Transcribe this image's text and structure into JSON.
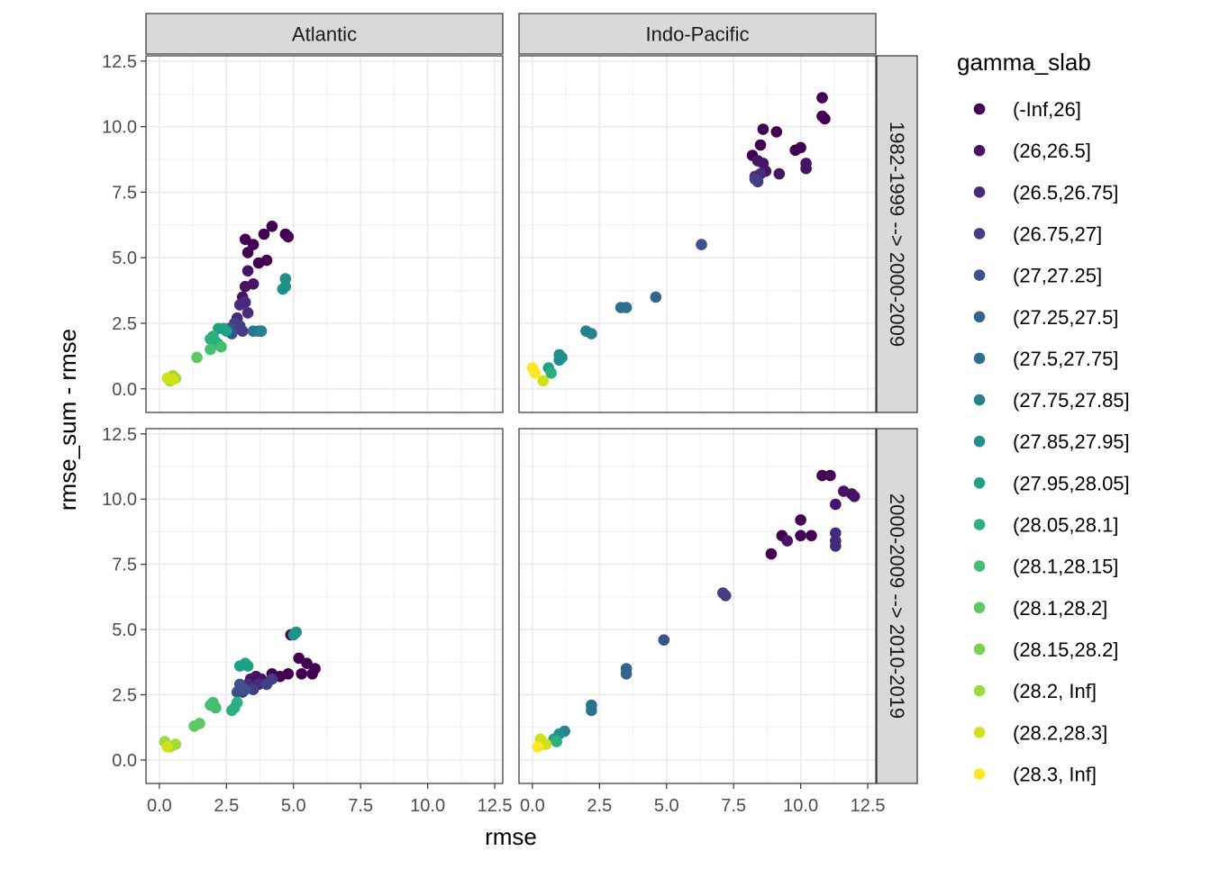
{
  "chart_data": {
    "type": "scatter",
    "facet_cols": [
      "Atlantic",
      "Indo-Pacific"
    ],
    "facet_rows": [
      "1982-1999 --> 2000-2009",
      "2000-2009 --> 2010-2019"
    ],
    "xlabel": "rmse",
    "ylabel": "rmse_sum - rmse",
    "xlim": [
      -0.5,
      12.8
    ],
    "ylim": [
      -0.9,
      12.7
    ],
    "x_ticks": [
      "0.0",
      "2.5",
      "5.0",
      "7.5",
      "10.0",
      "12.5"
    ],
    "y_ticks": [
      "0.0",
      "2.5",
      "5.0",
      "7.5",
      "10.0",
      "12.5"
    ],
    "grid": true,
    "legend_position": "right",
    "legend_title": "gamma_slab",
    "legend": [
      {
        "label": "(-Inf,26]",
        "color": "#440154"
      },
      {
        "label": "(26,26.5]",
        "color": "#471366"
      },
      {
        "label": "(26.5,26.75]",
        "color": "#472A7A"
      },
      {
        "label": "(26.75,27]",
        "color": "#433E85"
      },
      {
        "label": "(27,27.25]",
        "color": "#3B528B"
      },
      {
        "label": "(27.25,27.5]",
        "color": "#32648E"
      },
      {
        "label": "(27.5,27.75]",
        "color": "#2C728E"
      },
      {
        "label": "(27.75,27.85]",
        "color": "#27818E"
      },
      {
        "label": "(27.85,27.95]",
        "color": "#21908C"
      },
      {
        "label": "(27.95,28.05]",
        "color": "#1FA187"
      },
      {
        "label": "(28.05,28.1]",
        "color": "#2BB07F"
      },
      {
        "label": "(28.1,28.15]",
        "color": "#43BF71"
      },
      {
        "label": "(28.1,28.2]",
        "color": "#5DC863"
      },
      {
        "label": "(28.15,28.2]",
        "color": "#7AD151"
      },
      {
        "label": "(28.2, Inf]",
        "color": "#A0DA39"
      },
      {
        "label": "(28.2,28.3]",
        "color": "#D0E11C"
      },
      {
        "label": "(28.3, Inf]",
        "color": "#FDE725"
      }
    ],
    "panels": [
      {
        "col": "Atlantic",
        "row": "1982-1999 --> 2000-2009",
        "points": [
          [
            3.2,
            5.7,
            0
          ],
          [
            3.5,
            5.5,
            0
          ],
          [
            3.3,
            5.2,
            0
          ],
          [
            3.9,
            5.9,
            0
          ],
          [
            4.2,
            6.2,
            0
          ],
          [
            4.7,
            5.9,
            0
          ],
          [
            4.8,
            5.8,
            0
          ],
          [
            3.7,
            4.8,
            0
          ],
          [
            4.0,
            4.9,
            0
          ],
          [
            3.3,
            4.5,
            1
          ],
          [
            3.5,
            4.0,
            1
          ],
          [
            3.2,
            3.9,
            1
          ],
          [
            3.1,
            3.5,
            1
          ],
          [
            3.0,
            3.2,
            2
          ],
          [
            3.2,
            3.3,
            2
          ],
          [
            3.3,
            2.9,
            2
          ],
          [
            2.9,
            2.7,
            2
          ],
          [
            2.8,
            2.5,
            3
          ],
          [
            3.0,
            2.4,
            3
          ],
          [
            2.7,
            2.2,
            3
          ],
          [
            3.1,
            2.2,
            3
          ],
          [
            2.6,
            2.3,
            4
          ],
          [
            2.7,
            2.1,
            4
          ],
          [
            3.5,
            2.2,
            6
          ],
          [
            3.7,
            2.2,
            6
          ],
          [
            3.8,
            2.2,
            7
          ],
          [
            4.7,
            4.2,
            8
          ],
          [
            4.7,
            3.9,
            8
          ],
          [
            4.6,
            3.8,
            8
          ],
          [
            2.4,
            2.3,
            9
          ],
          [
            2.2,
            2.3,
            9
          ],
          [
            2.5,
            2.2,
            9
          ],
          [
            2.0,
            2.0,
            10
          ],
          [
            1.9,
            1.9,
            10
          ],
          [
            2.1,
            1.8,
            10
          ],
          [
            2.2,
            1.7,
            10
          ],
          [
            1.9,
            1.5,
            11
          ],
          [
            2.3,
            1.6,
            11
          ],
          [
            1.4,
            1.2,
            12
          ],
          [
            0.5,
            0.5,
            14
          ],
          [
            0.6,
            0.4,
            14
          ],
          [
            0.4,
            0.3,
            14
          ],
          [
            0.5,
            0.35,
            15
          ],
          [
            0.3,
            0.4,
            15
          ]
        ]
      },
      {
        "col": "Indo-Pacific",
        "row": "1982-1999 --> 2000-2009",
        "points": [
          [
            10.8,
            11.1,
            0
          ],
          [
            10.8,
            10.4,
            0
          ],
          [
            10.9,
            10.3,
            0
          ],
          [
            8.6,
            9.9,
            0
          ],
          [
            9.1,
            9.8,
            0
          ],
          [
            8.5,
            9.3,
            0
          ],
          [
            8.2,
            8.9,
            0
          ],
          [
            10.0,
            9.2,
            0
          ],
          [
            9.8,
            9.1,
            0
          ],
          [
            8.6,
            8.6,
            1
          ],
          [
            8.4,
            8.7,
            1
          ],
          [
            8.7,
            8.3,
            1
          ],
          [
            10.2,
            8.6,
            1
          ],
          [
            10.2,
            8.4,
            1
          ],
          [
            9.2,
            8.2,
            1
          ],
          [
            8.3,
            8.1,
            2
          ],
          [
            8.5,
            8.2,
            2
          ],
          [
            8.3,
            8.0,
            3
          ],
          [
            8.4,
            7.9,
            3
          ],
          [
            6.3,
            5.5,
            4
          ],
          [
            4.6,
            3.5,
            5
          ],
          [
            3.3,
            3.1,
            6
          ],
          [
            3.5,
            3.1,
            6
          ],
          [
            2.0,
            2.2,
            7
          ],
          [
            2.2,
            2.1,
            7
          ],
          [
            1.0,
            1.3,
            8
          ],
          [
            1.0,
            1.1,
            8
          ],
          [
            1.1,
            1.2,
            8
          ],
          [
            0.6,
            0.8,
            9
          ],
          [
            0.7,
            0.6,
            10
          ],
          [
            0.4,
            0.3,
            15
          ],
          [
            0.0,
            0.8,
            16
          ],
          [
            0.1,
            0.6,
            16
          ]
        ]
      },
      {
        "col": "Atlantic",
        "row": "2000-2009 --> 2010-2019",
        "points": [
          [
            4.9,
            4.8,
            0
          ],
          [
            5.2,
            3.9,
            0
          ],
          [
            5.5,
            3.7,
            0
          ],
          [
            5.8,
            3.5,
            0
          ],
          [
            5.3,
            3.3,
            0
          ],
          [
            4.8,
            3.3,
            0
          ],
          [
            4.5,
            3.2,
            0
          ],
          [
            4.2,
            3.3,
            0
          ],
          [
            5.7,
            3.3,
            0
          ],
          [
            3.6,
            3.2,
            1
          ],
          [
            3.4,
            3.1,
            1
          ],
          [
            3.8,
            3.1,
            1
          ],
          [
            3.7,
            2.9,
            2
          ],
          [
            3.3,
            2.9,
            2
          ],
          [
            3.1,
            2.6,
            3
          ],
          [
            3.5,
            2.7,
            3
          ],
          [
            4.0,
            2.9,
            3
          ],
          [
            4.2,
            3.1,
            3
          ],
          [
            3.0,
            2.9,
            4
          ],
          [
            2.9,
            2.6,
            4
          ],
          [
            3.2,
            2.7,
            4
          ],
          [
            5.0,
            4.8,
            8
          ],
          [
            5.1,
            4.9,
            8
          ],
          [
            3.0,
            3.6,
            9
          ],
          [
            3.2,
            3.7,
            9
          ],
          [
            3.3,
            3.6,
            9
          ],
          [
            2.9,
            2.2,
            10
          ],
          [
            2.8,
            2.0,
            10
          ],
          [
            2.7,
            1.9,
            10
          ],
          [
            2.0,
            2.2,
            11
          ],
          [
            2.1,
            2.0,
            11
          ],
          [
            1.9,
            2.1,
            11
          ],
          [
            1.5,
            1.4,
            12
          ],
          [
            1.3,
            1.3,
            12
          ],
          [
            0.2,
            0.7,
            14
          ],
          [
            0.4,
            0.5,
            14
          ],
          [
            0.6,
            0.6,
            14
          ],
          [
            0.3,
            0.5,
            15
          ]
        ]
      },
      {
        "col": "Indo-Pacific",
        "row": "2000-2009 --> 2010-2019",
        "points": [
          [
            10.8,
            10.9,
            0
          ],
          [
            11.1,
            10.9,
            0
          ],
          [
            8.9,
            7.9,
            0
          ],
          [
            9.3,
            8.6,
            0
          ],
          [
            10.0,
            8.6,
            0
          ],
          [
            10.4,
            8.6,
            0
          ],
          [
            10.0,
            9.2,
            0
          ],
          [
            11.6,
            10.3,
            1
          ],
          [
            11.9,
            10.2,
            1
          ],
          [
            12.0,
            10.1,
            1
          ],
          [
            11.3,
            9.8,
            1
          ],
          [
            9.5,
            8.4,
            1
          ],
          [
            11.3,
            8.7,
            2
          ],
          [
            11.3,
            8.4,
            2
          ],
          [
            11.3,
            8.2,
            2
          ],
          [
            7.1,
            6.4,
            3
          ],
          [
            7.2,
            6.3,
            3
          ],
          [
            4.9,
            4.6,
            4
          ],
          [
            3.5,
            3.5,
            5
          ],
          [
            3.5,
            3.3,
            5
          ],
          [
            2.2,
            2.1,
            6
          ],
          [
            2.2,
            1.9,
            6
          ],
          [
            1.2,
            1.1,
            7
          ],
          [
            1.0,
            1.0,
            8
          ],
          [
            0.8,
            0.8,
            9
          ],
          [
            0.9,
            0.7,
            10
          ],
          [
            0.5,
            0.6,
            15
          ],
          [
            0.3,
            0.8,
            15
          ],
          [
            0.2,
            0.5,
            16
          ]
        ]
      }
    ]
  }
}
